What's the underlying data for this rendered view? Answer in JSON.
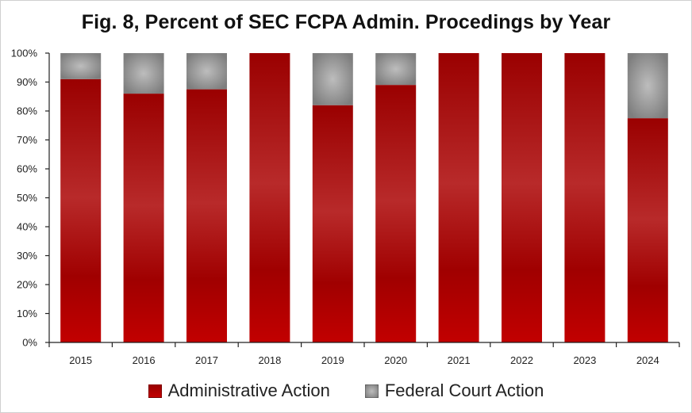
{
  "chart_data": {
    "type": "bar",
    "stacked": true,
    "title": "Fig. 8, Percent of SEC FCPA Admin. Procedings by Year",
    "categories": [
      "2015",
      "2016",
      "2017",
      "2018",
      "2019",
      "2020",
      "2021",
      "2022",
      "2023",
      "2024"
    ],
    "series": [
      {
        "name": "Administrative Action",
        "color": "#b00000",
        "values": [
          91,
          86,
          87.5,
          100,
          82,
          89,
          100,
          100,
          100,
          77.5
        ]
      },
      {
        "name": "Federal Court Action",
        "color": "#8c8c8c",
        "values": [
          9,
          14,
          12.5,
          0,
          18,
          11,
          0,
          0,
          0,
          22.5
        ]
      }
    ],
    "yticks": [
      "0%",
      "10%",
      "20%",
      "30%",
      "40%",
      "50%",
      "60%",
      "70%",
      "80%",
      "90%",
      "100%"
    ],
    "ylim": [
      0,
      100
    ],
    "grid": false,
    "legend_position": "bottom"
  }
}
